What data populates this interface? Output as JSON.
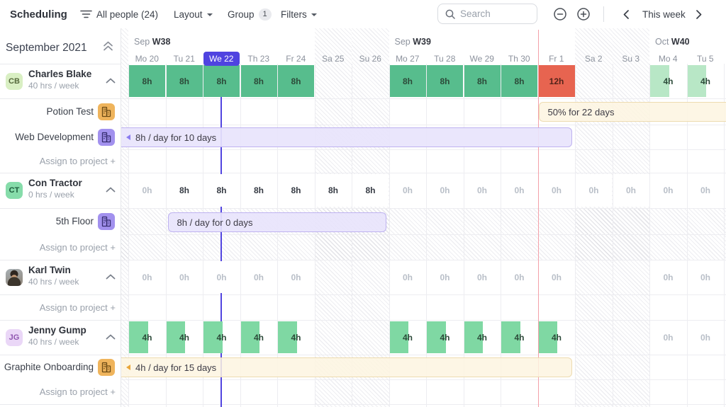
{
  "toolbar": {
    "title": "Scheduling",
    "people_filter": "All people (24)",
    "layout": "Layout",
    "group": "Group",
    "group_count": "1",
    "filters": "Filters",
    "search_placeholder": "Search",
    "this_week": "This week"
  },
  "sidebar": {
    "month": "September 2021",
    "assign_label": "Assign to project +"
  },
  "timeline": {
    "months": [
      {
        "prefix": "Sep",
        "week": "W38",
        "col": 0
      },
      {
        "prefix": "Sep",
        "week": "W39",
        "col": 7
      },
      {
        "prefix": "Oct",
        "week": "W40",
        "col": 14
      }
    ],
    "days": [
      {
        "label": "Mo 20"
      },
      {
        "label": "Tu 21"
      },
      {
        "label": "We 22",
        "today": true
      },
      {
        "label": "Th 23"
      },
      {
        "label": "Fr 24"
      },
      {
        "label": "Sa 25",
        "weekend": true
      },
      {
        "label": "Su 26",
        "weekend": true
      },
      {
        "label": "Mo 27"
      },
      {
        "label": "Tu 28"
      },
      {
        "label": "We 29"
      },
      {
        "label": "Th 30"
      },
      {
        "label": "Fr 1",
        "month_start": true
      },
      {
        "label": "Sa 2",
        "weekend": true
      },
      {
        "label": "Su 3",
        "weekend": true
      },
      {
        "label": "Mo 4"
      },
      {
        "label": "Tu 5"
      }
    ]
  },
  "colors": {
    "full": "#57bd8d",
    "full_text": "#2c4a39",
    "half": "#7fd8a3",
    "half_light": "#b8e7c6",
    "over": "#e76450",
    "over_text": "#54241a",
    "plain_text": "#363b44",
    "zero_text": "#b9bfc8",
    "purple_bar_bg": "rgba(232,228,252,0.92)",
    "purple_bar_border": "#beb2f0",
    "cream_bar_bg": "rgba(253,244,224,0.85)",
    "cream_bar_border": "#eddbb0",
    "purple_tri": "#8a7cf0",
    "orange_tri": "#e9a63a",
    "today": "#5245e0",
    "today_pill": "#4f43e0",
    "month_line": "#f4a0a9"
  },
  "people": [
    {
      "initials": "CB",
      "name": "Charles Blake",
      "capacity": "40 hrs / week",
      "avatar_bg": "#d9efc3",
      "avatar_fg": "#55683b",
      "photo": false,
      "cells": [
        {
          "col": 0,
          "v": "8h",
          "t": "full"
        },
        {
          "col": 1,
          "v": "8h",
          "t": "full"
        },
        {
          "col": 2,
          "v": "8h",
          "t": "full"
        },
        {
          "col": 3,
          "v": "8h",
          "t": "full"
        },
        {
          "col": 4,
          "v": "8h",
          "t": "full"
        },
        {
          "col": 7,
          "v": "8h",
          "t": "full"
        },
        {
          "col": 8,
          "v": "8h",
          "t": "full"
        },
        {
          "col": 9,
          "v": "8h",
          "t": "full"
        },
        {
          "col": 10,
          "v": "8h",
          "t": "full"
        },
        {
          "col": 11,
          "v": "12h",
          "t": "over"
        },
        {
          "col": 14,
          "v": "4h",
          "t": "half_light"
        },
        {
          "col": 15,
          "v": "4h",
          "t": "half_light"
        }
      ],
      "projects": [
        {
          "name": "Potion Test",
          "icon_bg": "#efb45c",
          "icon_fg": "#6b4a14",
          "bar": {
            "label": "50% for 22 days",
            "style": "cream",
            "triangle": false
          }
        },
        {
          "name": "Web Development",
          "icon_bg": "#a291ee",
          "icon_fg": "#352c6e",
          "bar": {
            "label": "8h / day for 10 days",
            "style": "purple",
            "triangle": true
          }
        }
      ]
    },
    {
      "initials": "CT",
      "name": "Con Tractor",
      "capacity": "0 hrs / week",
      "avatar_bg": "#86dcaa",
      "avatar_fg": "#1d5c3c",
      "photo": false,
      "cells": [
        {
          "col": 0,
          "v": "0h",
          "t": "zero"
        },
        {
          "col": 1,
          "v": "8h",
          "t": "plain"
        },
        {
          "col": 2,
          "v": "8h",
          "t": "plain"
        },
        {
          "col": 3,
          "v": "8h",
          "t": "plain"
        },
        {
          "col": 4,
          "v": "8h",
          "t": "plain"
        },
        {
          "col": 5,
          "v": "8h",
          "t": "plain"
        },
        {
          "col": 6,
          "v": "8h",
          "t": "plain"
        },
        {
          "col": 7,
          "v": "0h",
          "t": "zero"
        },
        {
          "col": 8,
          "v": "0h",
          "t": "zero"
        },
        {
          "col": 9,
          "v": "0h",
          "t": "zero"
        },
        {
          "col": 10,
          "v": "0h",
          "t": "zero"
        },
        {
          "col": 11,
          "v": "0h",
          "t": "zero"
        },
        {
          "col": 12,
          "v": "0h",
          "t": "zero"
        },
        {
          "col": 13,
          "v": "0h",
          "t": "zero"
        },
        {
          "col": 14,
          "v": "0h",
          "t": "zero"
        },
        {
          "col": 15,
          "v": "0h",
          "t": "zero"
        }
      ],
      "projects": [
        {
          "name": "5th Floor",
          "icon_bg": "#a291ee",
          "icon_fg": "#352c6e",
          "bar": {
            "label": "8h / day for 0 days",
            "style": "purple",
            "triangle": false
          }
        }
      ]
    },
    {
      "initials": "",
      "name": "Karl Twin",
      "capacity": "40 hrs / week",
      "avatar_bg": "#6e6354",
      "avatar_fg": "#fff",
      "photo": true,
      "cells": [
        {
          "col": 0,
          "v": "0h",
          "t": "zero"
        },
        {
          "col": 1,
          "v": "0h",
          "t": "zero"
        },
        {
          "col": 2,
          "v": "0h",
          "t": "zero"
        },
        {
          "col": 3,
          "v": "0h",
          "t": "zero"
        },
        {
          "col": 4,
          "v": "0h",
          "t": "zero"
        },
        {
          "col": 7,
          "v": "0h",
          "t": "zero"
        },
        {
          "col": 8,
          "v": "0h",
          "t": "zero"
        },
        {
          "col": 9,
          "v": "0h",
          "t": "zero"
        },
        {
          "col": 10,
          "v": "0h",
          "t": "zero"
        },
        {
          "col": 11,
          "v": "0h",
          "t": "zero"
        },
        {
          "col": 14,
          "v": "0h",
          "t": "zero"
        },
        {
          "col": 15,
          "v": "0h",
          "t": "zero"
        }
      ],
      "projects": []
    },
    {
      "initials": "JG",
      "name": "Jenny Gump",
      "capacity": "40 hrs / week",
      "avatar_bg": "#ead7f7",
      "avatar_fg": "#8f56b0",
      "photo": false,
      "cells": [
        {
          "col": 0,
          "v": "4h",
          "t": "half"
        },
        {
          "col": 1,
          "v": "4h",
          "t": "half"
        },
        {
          "col": 2,
          "v": "4h",
          "t": "half"
        },
        {
          "col": 3,
          "v": "4h",
          "t": "half"
        },
        {
          "col": 4,
          "v": "4h",
          "t": "half"
        },
        {
          "col": 7,
          "v": "4h",
          "t": "half"
        },
        {
          "col": 8,
          "v": "4h",
          "t": "half"
        },
        {
          "col": 9,
          "v": "4h",
          "t": "half"
        },
        {
          "col": 10,
          "v": "4h",
          "t": "half"
        },
        {
          "col": 11,
          "v": "4h",
          "t": "half"
        },
        {
          "col": 14,
          "v": "0h",
          "t": "zero"
        },
        {
          "col": 15,
          "v": "0h",
          "t": "zero"
        }
      ],
      "projects": [
        {
          "name": "Graphite Onboarding",
          "icon_bg": "#efb45c",
          "icon_fg": "#6b4a14",
          "bar": {
            "label": "4h / day for 15 days",
            "style": "cream",
            "triangle": true
          }
        }
      ]
    }
  ]
}
